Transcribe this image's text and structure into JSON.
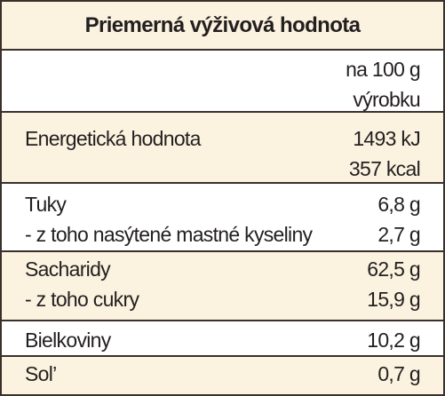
{
  "header": {
    "title": "Priemerná výživová hodnota"
  },
  "table": {
    "column_header": [
      "na 100 g",
      "výrobku"
    ],
    "rows": [
      {
        "labels": [
          "Energetická hodnota"
        ],
        "values": [
          "1493 kJ",
          "357 kcal"
        ]
      },
      {
        "labels": [
          "Tuky",
          "- z toho nasýtené mastné kyseliny"
        ],
        "values": [
          "6,8 g",
          "2,7 g"
        ]
      },
      {
        "labels": [
          "Sacharidy",
          "- z toho cukry"
        ],
        "values": [
          "62,5 g",
          "15,9 g"
        ]
      },
      {
        "labels": [
          "Bielkoviny"
        ],
        "values": [
          "10,2 g"
        ]
      },
      {
        "labels": [
          "Sol’"
        ],
        "values": [
          "0,7 g"
        ]
      }
    ]
  }
}
